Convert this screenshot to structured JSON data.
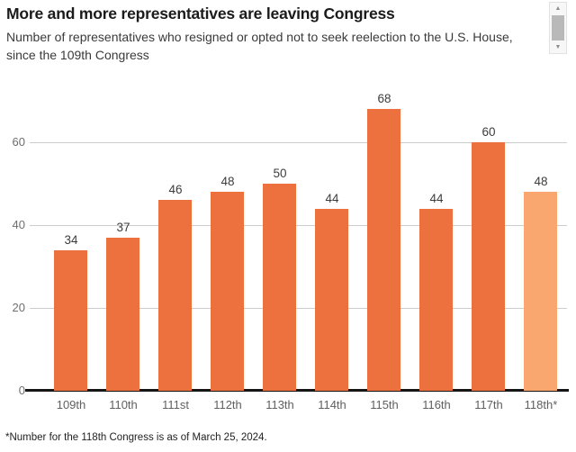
{
  "header": {
    "title": "More and more representatives are leaving Congress",
    "subtitle": "Number of representatives who resigned or opted not to seek reelection to the U.S. House, since the 109th Congress"
  },
  "chart_data": {
    "type": "bar",
    "title": "More and more representatives are leaving Congress",
    "subtitle": "Number of representatives who resigned or opted not to seek reelection to the U.S. House, since the 109th Congress",
    "categories": [
      "109th",
      "110th",
      "111st",
      "112th",
      "113th",
      "114th",
      "115th",
      "116th",
      "117th",
      "118th*"
    ],
    "values": [
      34,
      37,
      46,
      48,
      50,
      44,
      68,
      44,
      60,
      48
    ],
    "highlight_index": 9,
    "xlabel": "",
    "ylabel": "",
    "ylim": [
      0,
      73
    ],
    "yticks": [
      0,
      20,
      40,
      60
    ],
    "grid": true,
    "legend": "none",
    "colors": {
      "bar": "#ED713E",
      "bar_highlight": "#FAA76F",
      "gridline": "#CCCCCC",
      "baseline": "#161616",
      "axis_label": "#6F6F6F",
      "value_label": "#3C3C3C"
    }
  },
  "scrollbar": {
    "up_icon": "▲",
    "down_icon": "▼"
  },
  "footnote": "*Number for the 118th Congress is as of March 25, 2024."
}
